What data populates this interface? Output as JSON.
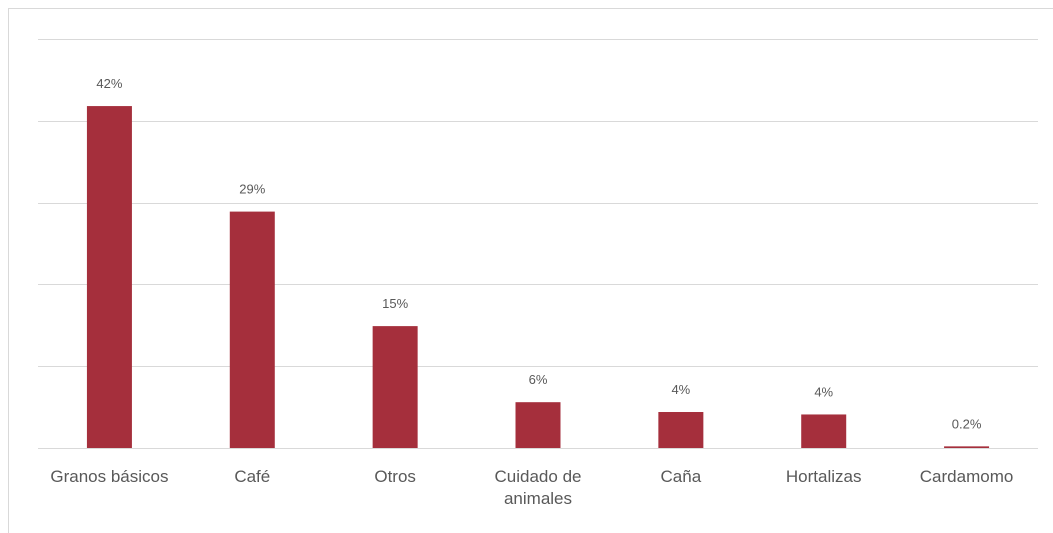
{
  "chart_data": {
    "type": "bar",
    "categories": [
      "Granos básicos",
      "Café",
      "Otros",
      "Cuidado de animales",
      "Caña",
      "Hortalizas",
      "Cardamomo"
    ],
    "values": [
      41.8,
      28.9,
      14.9,
      5.6,
      4.4,
      4.1,
      0.2
    ],
    "value_labels": [
      "42%",
      "29%",
      "15%",
      "6%",
      "4%",
      "4%",
      "0.2%"
    ],
    "color": "#a52f3c",
    "ylim": [
      0,
      50
    ],
    "yticks": [
      0,
      10,
      20,
      30,
      40,
      50
    ],
    "grid": true
  }
}
